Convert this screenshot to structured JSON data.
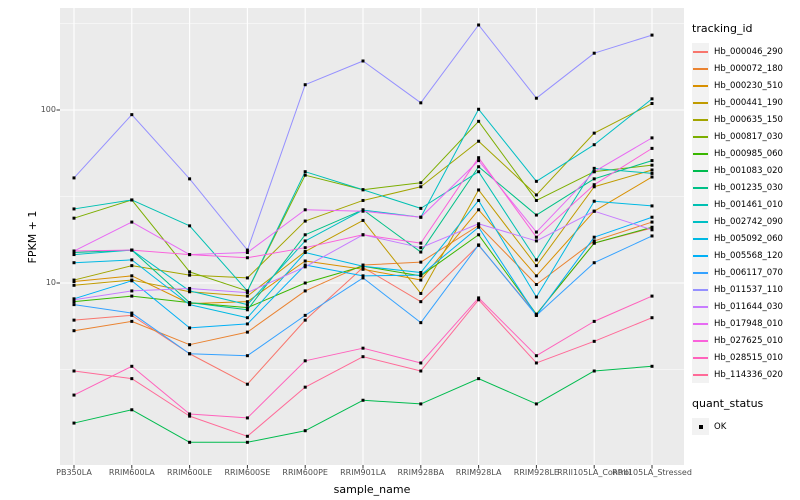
{
  "chart_data": {
    "type": "line",
    "title": "",
    "xlabel": "sample_name",
    "ylabel": "FPKM + 1",
    "y_scale": "log10",
    "ylim": [
      0.89,
      389
    ],
    "y_major_ticks": [
      10,
      100
    ],
    "y_minor_gridlines": [
      3.162,
      31.62,
      316.2
    ],
    "grid": true,
    "panel_bg": "#EBEBEB",
    "grid_color": "#FFFFFF",
    "point_color": "#000000",
    "point_shape": "filled-square",
    "legend_position": "right",
    "categories": [
      "PB350LA",
      "RRIM600LA",
      "RRIM600LE",
      "RRIM600SE",
      "RRIM600PE",
      "RRIM901LA",
      "RRIM928BA",
      "RRIM928LA",
      "RRIM928LE",
      "RRII105LA_Control",
      "RRII105LA_Stressed"
    ],
    "legend": {
      "tracking_title": "tracking_id",
      "quant_title": "quant_status",
      "quant_items": [
        {
          "label": "OK",
          "marker": "filled-square",
          "color": "#000000"
        }
      ]
    },
    "series": [
      {
        "name": "Hb_000046_290",
        "color": "#F8766D",
        "values": [
          6.1,
          6.5,
          3.9,
          2.6,
          6.1,
          12.3,
          7.8,
          16.5,
          6.6,
          17.0,
          20.8
        ]
      },
      {
        "name": "Hb_000072_180",
        "color": "#EA8331",
        "values": [
          5.3,
          6.0,
          4.4,
          5.2,
          9.0,
          12.7,
          13.2,
          21.5,
          9.8,
          17.5,
          22.5
        ]
      },
      {
        "name": "Hb_000230_510",
        "color": "#D89000",
        "values": [
          10.2,
          11.0,
          7.6,
          7.8,
          13.4,
          12.0,
          10.4,
          26.5,
          11.0,
          26.0,
          41.0
        ]
      },
      {
        "name": "Hb_000441_190",
        "color": "#C09B00",
        "values": [
          9.7,
          10.4,
          8.9,
          8.4,
          15.2,
          23.0,
          8.7,
          34.5,
          12.6,
          36.0,
          45.0
        ]
      },
      {
        "name": "Hb_000635_150",
        "color": "#A3A500",
        "values": [
          10.4,
          12.6,
          11.1,
          10.7,
          22.8,
          30.0,
          36.0,
          66.0,
          32.3,
          73.5,
          109.0
        ]
      },
      {
        "name": "Hb_000817_030",
        "color": "#7CAE00",
        "values": [
          23.7,
          30.2,
          11.6,
          9.0,
          42.0,
          34.6,
          38.0,
          86.0,
          30.0,
          44.0,
          48.0
        ]
      },
      {
        "name": "Hb_000985_060",
        "color": "#39B600",
        "values": [
          7.8,
          8.4,
          7.7,
          7.2,
          10.0,
          12.5,
          11.0,
          19.0,
          6.6,
          17.0,
          21.0
        ]
      },
      {
        "name": "Hb_001083_020",
        "color": "#00BB4E",
        "values": [
          1.55,
          1.85,
          1.2,
          1.2,
          1.4,
          2.1,
          2.0,
          2.8,
          2.0,
          3.1,
          3.3
        ]
      },
      {
        "name": "Hb_001235_030",
        "color": "#00C087",
        "values": [
          15.0,
          15.5,
          7.7,
          7.0,
          19.0,
          26.5,
          15.1,
          47.0,
          24.7,
          40.0,
          51.0
        ]
      },
      {
        "name": "Hb_001461_010",
        "color": "#00C0B2",
        "values": [
          26.8,
          30.2,
          21.4,
          9.0,
          44.0,
          34.6,
          27.0,
          44.0,
          13.6,
          46.0,
          43.0
        ]
      },
      {
        "name": "Hb_002742_090",
        "color": "#00BFC4",
        "values": [
          14.6,
          15.5,
          9.0,
          7.5,
          17.5,
          26.4,
          24.0,
          101.0,
          38.7,
          63.0,
          116.0
        ]
      },
      {
        "name": "Hb_005092_060",
        "color": "#00B9E3",
        "values": [
          13.1,
          13.6,
          7.5,
          6.3,
          15.0,
          12.5,
          11.5,
          30.0,
          8.3,
          29.7,
          27.9
        ]
      },
      {
        "name": "Hb_005568_120",
        "color": "#00B0F6",
        "values": [
          8.1,
          10.3,
          5.5,
          5.8,
          12.7,
          11.0,
          11.1,
          21.0,
          6.5,
          18.4,
          24.0
        ]
      },
      {
        "name": "Hb_006117_070",
        "color": "#35A2FF",
        "values": [
          7.5,
          6.7,
          3.9,
          3.8,
          6.5,
          10.7,
          5.9,
          16.6,
          6.5,
          13.1,
          18.7
        ]
      },
      {
        "name": "Hb_011537_110",
        "color": "#9590FF",
        "values": [
          40.5,
          94.0,
          40.0,
          15.5,
          140.0,
          192.0,
          110.0,
          310.0,
          117.0,
          213.0,
          271.0
        ]
      },
      {
        "name": "Hb_011644_030",
        "color": "#C77CFF",
        "values": [
          8.0,
          9.0,
          9.3,
          8.8,
          12.4,
          19.0,
          16.0,
          22.0,
          17.5,
          26.0,
          20.3
        ]
      },
      {
        "name": "Hb_017948_010",
        "color": "#E76BF3",
        "values": [
          15.3,
          22.5,
          14.6,
          15.0,
          26.5,
          26.0,
          24.0,
          51.0,
          19.7,
          44.0,
          69.0
        ]
      },
      {
        "name": "Hb_027625_010",
        "color": "#FA62DB",
        "values": [
          15.3,
          15.5,
          14.6,
          14.0,
          16.0,
          19.0,
          17.0,
          53.0,
          18.4,
          37.0,
          60.0
        ]
      },
      {
        "name": "Hb_028515_010",
        "color": "#FF62BC",
        "values": [
          2.25,
          3.3,
          1.75,
          1.66,
          3.55,
          4.2,
          3.45,
          8.2,
          3.8,
          6.0,
          8.4
        ]
      },
      {
        "name": "Hb_114336_020",
        "color": "#FF6A98",
        "values": [
          3.1,
          2.8,
          1.7,
          1.3,
          2.5,
          3.75,
          3.1,
          8.0,
          3.45,
          4.6,
          6.3
        ]
      }
    ]
  }
}
